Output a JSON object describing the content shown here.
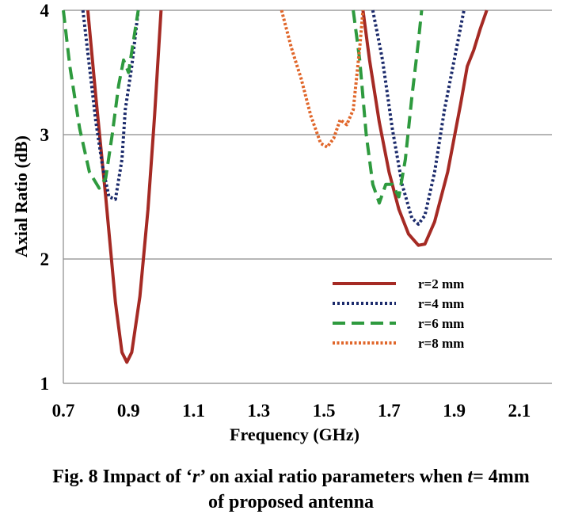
{
  "chart_data": {
    "type": "line",
    "title": "",
    "xlabel": "Frequency (GHz)",
    "ylabel": "Axial Ratio (dB)",
    "xlim": [
      0.7,
      2.2
    ],
    "ylim": [
      1,
      4
    ],
    "xticks": [
      "0.7",
      "0.9",
      "1.1",
      "1.3",
      "1.5",
      "1.7",
      "1.9",
      "2.1"
    ],
    "yticks": [
      "1",
      "2",
      "3",
      "4"
    ],
    "grid": "horizontal",
    "legend_position": "lower-right",
    "series": [
      {
        "name": "r=2 mm",
        "color": "#a52a24",
        "dash": "solid",
        "segments": [
          [
            [
              0.775,
              4.0
            ],
            [
              0.8,
              3.3
            ],
            [
              0.83,
              2.5
            ],
            [
              0.86,
              1.65
            ],
            [
              0.88,
              1.25
            ],
            [
              0.895,
              1.17
            ],
            [
              0.91,
              1.25
            ],
            [
              0.935,
              1.7
            ],
            [
              0.96,
              2.4
            ],
            [
              0.98,
              3.15
            ],
            [
              1.0,
              4.0
            ]
          ],
          [
            [
              1.62,
              4.0
            ],
            [
              1.64,
              3.6
            ],
            [
              1.67,
              3.1
            ],
            [
              1.7,
              2.7
            ],
            [
              1.73,
              2.4
            ],
            [
              1.76,
              2.2
            ],
            [
              1.79,
              2.11
            ],
            [
              1.81,
              2.12
            ],
            [
              1.84,
              2.3
            ],
            [
              1.88,
              2.7
            ],
            [
              1.92,
              3.25
            ],
            [
              1.94,
              3.55
            ],
            [
              1.96,
              3.68
            ],
            [
              1.98,
              3.85
            ],
            [
              2.0,
              4.0
            ]
          ]
        ]
      },
      {
        "name": "r=4 mm",
        "color": "#1b2a6b",
        "dash": "dotted",
        "segments": [
          [
            [
              0.76,
              4.0
            ],
            [
              0.78,
              3.55
            ],
            [
              0.8,
              3.1
            ],
            [
              0.82,
              2.75
            ],
            [
              0.84,
              2.5
            ],
            [
              0.86,
              2.48
            ],
            [
              0.88,
              2.8
            ],
            [
              0.89,
              3.2
            ],
            [
              0.91,
              3.55
            ],
            [
              0.93,
              4.0
            ]
          ],
          [
            [
              1.65,
              4.0
            ],
            [
              1.68,
              3.6
            ],
            [
              1.71,
              3.05
            ],
            [
              1.74,
              2.6
            ],
            [
              1.77,
              2.33
            ],
            [
              1.79,
              2.28
            ],
            [
              1.81,
              2.35
            ],
            [
              1.84,
              2.7
            ],
            [
              1.87,
              3.2
            ],
            [
              1.9,
              3.6
            ],
            [
              1.93,
              4.0
            ]
          ]
        ]
      },
      {
        "name": "r=6 mm",
        "color": "#2e9a3e",
        "dash": "dashed",
        "segments": [
          [
            [
              0.7,
              4.0
            ],
            [
              0.72,
              3.55
            ],
            [
              0.75,
              3.05
            ],
            [
              0.78,
              2.7
            ],
            [
              0.81,
              2.57
            ],
            [
              0.83,
              2.65
            ],
            [
              0.85,
              3.0
            ],
            [
              0.87,
              3.4
            ],
            [
              0.885,
              3.6
            ],
            [
              0.9,
              3.5
            ],
            [
              0.915,
              3.75
            ],
            [
              0.93,
              4.0
            ]
          ],
          [
            [
              1.59,
              4.0
            ],
            [
              1.61,
              3.6
            ],
            [
              1.63,
              3.0
            ],
            [
              1.65,
              2.6
            ],
            [
              1.67,
              2.45
            ],
            [
              1.69,
              2.6
            ],
            [
              1.71,
              2.6
            ],
            [
              1.73,
              2.5
            ],
            [
              1.75,
              2.8
            ],
            [
              1.77,
              3.3
            ],
            [
              1.79,
              3.75
            ],
            [
              1.8,
              4.0
            ]
          ]
        ]
      },
      {
        "name": "r=8 mm",
        "color": "#e0662a",
        "dash": "short-dotted",
        "segments": [
          [
            [
              1.37,
              4.0
            ],
            [
              1.4,
              3.7
            ],
            [
              1.43,
              3.45
            ],
            [
              1.46,
              3.15
            ],
            [
              1.49,
              2.93
            ],
            [
              1.51,
              2.9
            ],
            [
              1.53,
              2.97
            ],
            [
              1.55,
              3.12
            ],
            [
              1.57,
              3.08
            ],
            [
              1.59,
              3.2
            ],
            [
              1.61,
              3.7
            ],
            [
              1.62,
              4.0
            ]
          ]
        ]
      }
    ]
  },
  "caption": {
    "line1_prefix": "Fig. 8 Impact of ‘",
    "line1_r": "r",
    "line1_mid": "’ on axial ratio parameters when ",
    "line1_t": "t",
    "line1_suffix": "= 4mm",
    "line2": "of proposed antenna"
  }
}
